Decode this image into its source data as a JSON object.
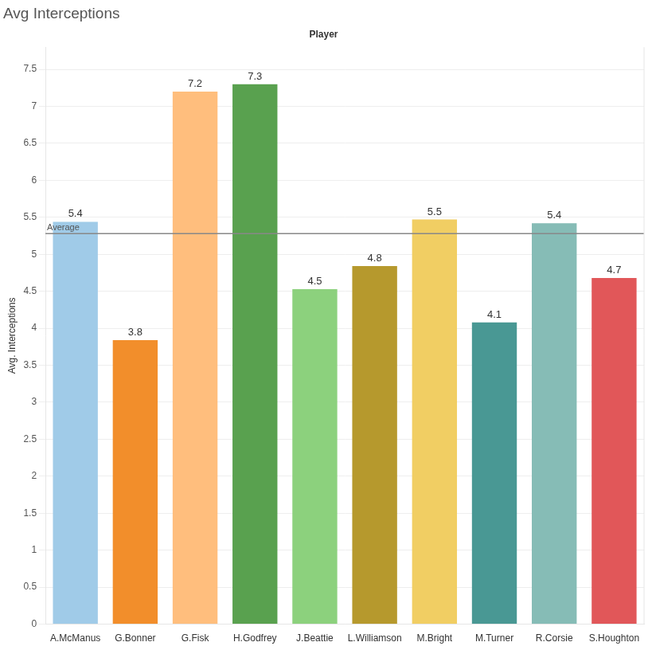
{
  "chart_data": {
    "type": "bar",
    "title": "Avg Interceptions",
    "x_label": "Player",
    "y_label": "Avg. Interceptions",
    "categories": [
      "A.McManus",
      "G.Bonner",
      "G.Fisk",
      "H.Godfrey",
      "J.Beattie",
      "L.Williamson",
      "M.Bright",
      "M.Turner",
      "R.Corsie",
      "S.Houghton"
    ],
    "values": [
      5.44,
      3.84,
      7.2,
      7.3,
      4.53,
      4.84,
      5.47,
      4.08,
      5.42,
      4.68
    ],
    "value_labels": [
      "5.4",
      "3.8",
      "7.2",
      "7.3",
      "4.5",
      "4.8",
      "5.5",
      "4.1",
      "5.4",
      "4.7"
    ],
    "colors": [
      "#a0cbe8",
      "#f28e2b",
      "#ffbe7d",
      "#59a14f",
      "#8cd17d",
      "#b6992d",
      "#f1ce63",
      "#499894",
      "#86bcb6",
      "#e15759"
    ],
    "ylim": [
      0,
      7.8
    ],
    "yticks": [
      0,
      0.5,
      1,
      1.5,
      2,
      2.5,
      3,
      3.5,
      4,
      4.5,
      5,
      5.5,
      6,
      6.5,
      7,
      7.5
    ],
    "reference_line": {
      "label": "Average",
      "value": 5.28
    },
    "data_labels": true,
    "grid": true
  }
}
